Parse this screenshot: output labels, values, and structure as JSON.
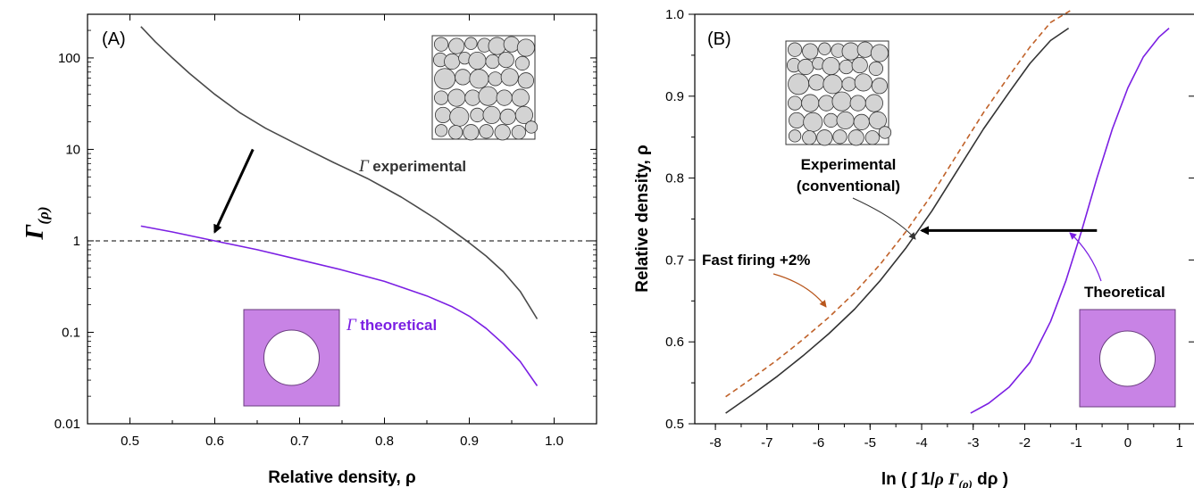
{
  "chart_data": [
    {
      "panel": "(A)",
      "type": "line",
      "xlabel": "Relative density, ρ",
      "ylabel": "Γ(ρ)",
      "ylabel_symbol": "Γ",
      "ylabel_sub": "(ρ)",
      "xlim": [
        0.45,
        1.05
      ],
      "ylim": [
        0.01,
        300
      ],
      "yscale": "log",
      "x_ticks": [
        0.5,
        0.6,
        0.7,
        0.8,
        0.9,
        1.0
      ],
      "x_tick_labels": [
        "0.5",
        "0.6",
        "0.7",
        "0.8",
        "0.9",
        "1.0"
      ],
      "y_ticks": [
        0.01,
        0.1,
        1,
        10,
        100
      ],
      "y_tick_labels": [
        "0.01",
        "0.1",
        "1",
        "10",
        "100"
      ],
      "reference_line": {
        "y": 1,
        "style": "dashed"
      },
      "series": [
        {
          "key": "experimental",
          "color": "#4a4a4a",
          "x": [
            0.513,
            0.53,
            0.55,
            0.57,
            0.6,
            0.63,
            0.66,
            0.7,
            0.74,
            0.78,
            0.8,
            0.82,
            0.84,
            0.86,
            0.88,
            0.9,
            0.92,
            0.94,
            0.96,
            0.98
          ],
          "y": [
            220,
            150,
            100,
            68,
            40,
            25,
            17,
            11,
            7.2,
            4.8,
            3.8,
            3.0,
            2.3,
            1.75,
            1.3,
            0.95,
            0.68,
            0.46,
            0.28,
            0.14
          ]
        },
        {
          "key": "theoretical",
          "color": "#7b1fe3",
          "x": [
            0.513,
            0.55,
            0.6,
            0.65,
            0.7,
            0.75,
            0.8,
            0.85,
            0.88,
            0.9,
            0.92,
            0.94,
            0.96,
            0.98
          ],
          "y": [
            1.45,
            1.25,
            1.0,
            0.8,
            0.62,
            0.48,
            0.36,
            0.25,
            0.19,
            0.15,
            0.11,
            0.075,
            0.048,
            0.026
          ]
        }
      ],
      "annotations": [
        {
          "key": "exp",
          "symbol": "Γ",
          "text": "experimental",
          "color": "#333333"
        },
        {
          "key": "theo",
          "symbol": "Γ",
          "text": "theoretical",
          "color": "#7b1fe3"
        }
      ],
      "arrow": {
        "x1": 0.645,
        "y1": 10,
        "x2": 0.6,
        "y2": 1.25,
        "color": "#000000"
      },
      "insets": [
        {
          "kind": "random-packed-spheres",
          "fill": "#d3d3d3"
        },
        {
          "kind": "single-pore-unit-cell",
          "fill": "#c883e5"
        }
      ]
    },
    {
      "panel": "(B)",
      "type": "line",
      "xlabel_prefix": "ln ( ∫ 1/",
      "xlabel_rho": "ρ",
      "xlabel_gamma": "Γ",
      "xlabel_sub": "(ρ)",
      "xlabel_suffix": " dρ )",
      "ylabel": "Relative density, ρ",
      "xlim": [
        -8.4,
        1.3
      ],
      "ylim": [
        0.5,
        1.0
      ],
      "x_ticks": [
        -8,
        -7,
        -6,
        -5,
        -4,
        -3,
        -2,
        -1,
        0,
        1
      ],
      "x_tick_labels": [
        "-8",
        "-7",
        "-6",
        "-5",
        "-4",
        "-3",
        "-2",
        "-1",
        "0",
        "1"
      ],
      "y_ticks": [
        0.5,
        0.6,
        0.7,
        0.8,
        0.9,
        1.0
      ],
      "y_tick_labels": [
        "0.5",
        "0.6",
        "0.7",
        "0.8",
        "0.9",
        "1.0"
      ],
      "series": [
        {
          "key": "experimental",
          "color": "#333333",
          "style": "solid",
          "x": [
            -7.8,
            -7.3,
            -6.8,
            -6.3,
            -5.8,
            -5.3,
            -4.8,
            -4.3,
            -3.8,
            -3.3,
            -2.8,
            -2.3,
            -1.9,
            -1.5,
            -1.15
          ],
          "y": [
            0.513,
            0.535,
            0.558,
            0.583,
            0.61,
            0.64,
            0.675,
            0.715,
            0.76,
            0.81,
            0.86,
            0.905,
            0.94,
            0.968,
            0.983
          ]
        },
        {
          "key": "fast-firing",
          "color": "#c0622a",
          "style": "dashed",
          "x": [
            -7.8,
            -7.3,
            -6.8,
            -6.3,
            -5.8,
            -5.3,
            -4.8,
            -4.3,
            -3.8,
            -3.3,
            -2.8,
            -2.3,
            -1.9,
            -1.5,
            -1.1
          ],
          "y": [
            0.533,
            0.555,
            0.578,
            0.603,
            0.63,
            0.66,
            0.695,
            0.735,
            0.78,
            0.83,
            0.88,
            0.925,
            0.96,
            0.99,
            1.005
          ]
        },
        {
          "key": "theoretical",
          "color": "#7b1fe3",
          "style": "solid",
          "x": [
            -3.05,
            -2.7,
            -2.3,
            -1.9,
            -1.5,
            -1.2,
            -0.9,
            -0.6,
            -0.3,
            0.0,
            0.3,
            0.6,
            0.8
          ],
          "y": [
            0.513,
            0.525,
            0.545,
            0.575,
            0.625,
            0.675,
            0.735,
            0.8,
            0.86,
            0.91,
            0.948,
            0.972,
            0.983
          ]
        }
      ],
      "annotations": [
        {
          "key": "exp-line1",
          "text": "Experimental",
          "color": "#444444"
        },
        {
          "key": "exp-line2",
          "text": "(conventional)",
          "color": "#444444"
        },
        {
          "key": "fast",
          "text": "Fast firing +2%",
          "color": "#b8561c"
        },
        {
          "key": "theo",
          "text": "Theoretical",
          "color": "#7b1fe3"
        }
      ],
      "arrow": {
        "x1": -0.6,
        "y1": 0.736,
        "x2": -4.0,
        "y2": 0.736,
        "color": "#000000"
      },
      "insets": [
        {
          "kind": "random-packed-spheres",
          "fill": "#d3d3d3"
        },
        {
          "kind": "single-pore-unit-cell",
          "fill": "#c883e5"
        }
      ]
    }
  ]
}
